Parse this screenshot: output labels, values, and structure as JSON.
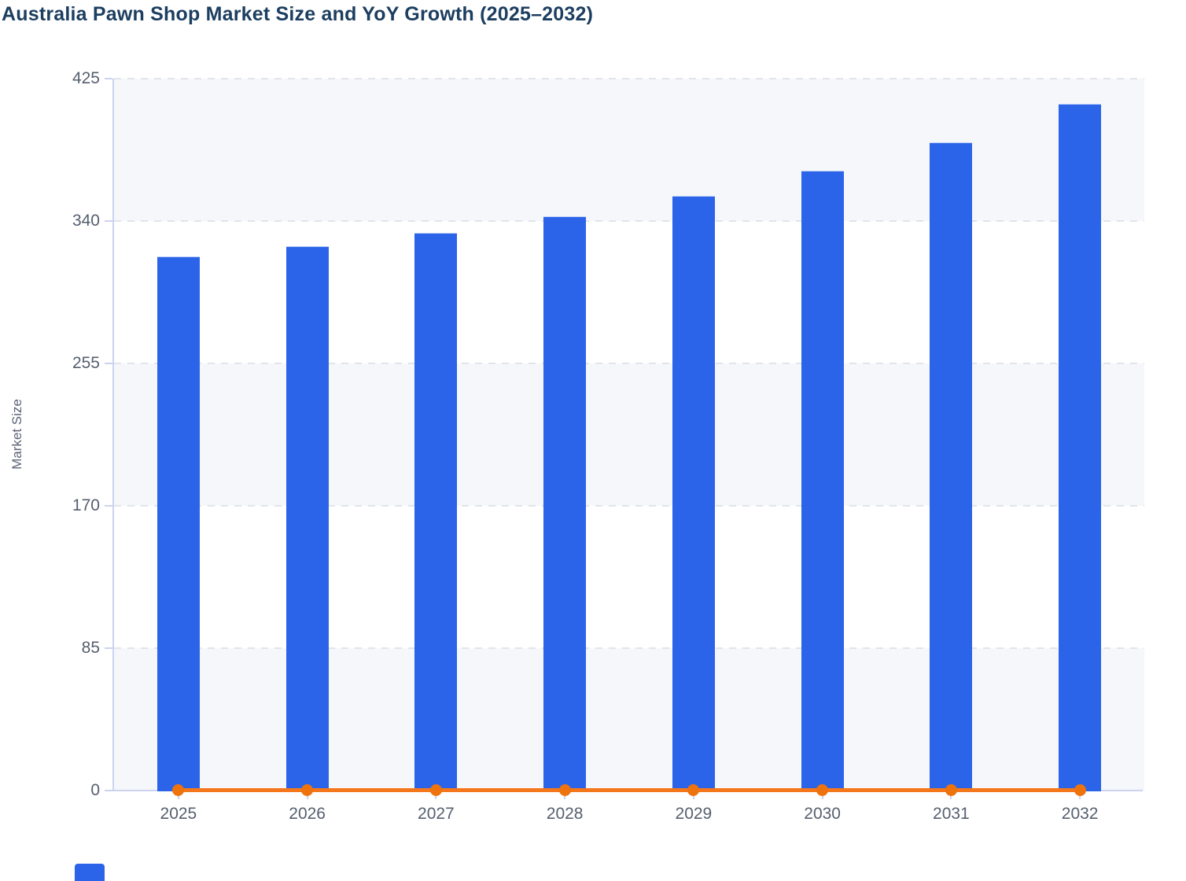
{
  "chart": {
    "title": "Australia Pawn Shop Market Size and YoY Growth (2025–2032)",
    "y_axis_label": "Market Size"
  },
  "colors": {
    "bar": "#2b64e9",
    "line": "#f5771c",
    "marker": "#ee730d",
    "title_text": "#1c3e60",
    "axis": "#ccd3ee",
    "tick_text": "#565f6f",
    "band": "#f6f7fa",
    "band_alt": "#ffffff",
    "grid": "#e1e4ea"
  },
  "chart_data": {
    "type": "bar+line",
    "title": "Australia Pawn Shop Market Size and YoY Growth (2025–2032)",
    "categories": [
      "2025",
      "2026",
      "2027",
      "2028",
      "2029",
      "2030",
      "2031",
      "2032"
    ],
    "series": [
      {
        "name": "Market Size",
        "type": "bar",
        "color": "#2b64e9",
        "values": [
          319,
          325,
          333,
          343,
          355,
          370,
          387,
          410
        ]
      },
      {
        "name": "YoY Growth",
        "type": "line",
        "color": "#f5771c",
        "marker_color": "#ee730d",
        "values": [
          0,
          0,
          0,
          0,
          0,
          0,
          0,
          0
        ],
        "note": "line renders flat on the zero baseline with a round marker at every year; exact growth percentages are not labeled in the image"
      }
    ],
    "xlabel": "",
    "ylabel": "Market Size",
    "ylim": [
      0,
      425
    ],
    "yticks": [
      0,
      85,
      170,
      255,
      340,
      425
    ],
    "grid": "dashed horizontal gridlines at each y tick",
    "background_bands": "alternating light-gray / white horizontal bands between ticks",
    "legend_position": "bottom-left, cut off at image bottom edge (only part of the blue swatch visible)"
  }
}
